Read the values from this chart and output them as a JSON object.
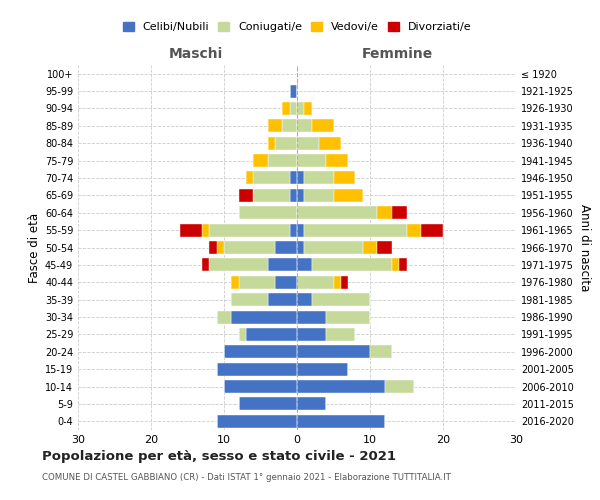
{
  "age_groups": [
    "0-4",
    "5-9",
    "10-14",
    "15-19",
    "20-24",
    "25-29",
    "30-34",
    "35-39",
    "40-44",
    "45-49",
    "50-54",
    "55-59",
    "60-64",
    "65-69",
    "70-74",
    "75-79",
    "80-84",
    "85-89",
    "90-94",
    "95-99",
    "100+"
  ],
  "birth_years": [
    "2016-2020",
    "2011-2015",
    "2006-2010",
    "2001-2005",
    "1996-2000",
    "1991-1995",
    "1986-1990",
    "1981-1985",
    "1976-1980",
    "1971-1975",
    "1966-1970",
    "1961-1965",
    "1956-1960",
    "1951-1955",
    "1946-1950",
    "1941-1945",
    "1936-1940",
    "1931-1935",
    "1926-1930",
    "1921-1925",
    "≤ 1920"
  ],
  "male": {
    "celibi": [
      11,
      8,
      10,
      11,
      10,
      7,
      9,
      4,
      3,
      4,
      3,
      1,
      0,
      1,
      1,
      0,
      0,
      0,
      0,
      1,
      0
    ],
    "coniugati": [
      0,
      0,
      0,
      0,
      0,
      1,
      2,
      5,
      5,
      8,
      7,
      11,
      8,
      5,
      5,
      4,
      3,
      2,
      1,
      0,
      0
    ],
    "vedovi": [
      0,
      0,
      0,
      0,
      0,
      0,
      0,
      0,
      1,
      0,
      1,
      1,
      0,
      0,
      1,
      2,
      1,
      2,
      1,
      0,
      0
    ],
    "divorziati": [
      0,
      0,
      0,
      0,
      0,
      0,
      0,
      0,
      0,
      1,
      1,
      3,
      0,
      2,
      0,
      0,
      0,
      0,
      0,
      0,
      0
    ]
  },
  "female": {
    "nubili": [
      12,
      4,
      12,
      7,
      10,
      4,
      4,
      2,
      0,
      2,
      1,
      1,
      0,
      1,
      1,
      0,
      0,
      0,
      0,
      0,
      0
    ],
    "coniugate": [
      0,
      0,
      4,
      0,
      3,
      4,
      6,
      8,
      5,
      11,
      8,
      14,
      11,
      4,
      4,
      4,
      3,
      2,
      1,
      0,
      0
    ],
    "vedove": [
      0,
      0,
      0,
      0,
      0,
      0,
      0,
      0,
      1,
      1,
      2,
      2,
      2,
      4,
      3,
      3,
      3,
      3,
      1,
      0,
      0
    ],
    "divorziate": [
      0,
      0,
      0,
      0,
      0,
      0,
      0,
      0,
      1,
      1,
      2,
      3,
      2,
      0,
      0,
      0,
      0,
      0,
      0,
      0,
      0
    ]
  },
  "colors": {
    "celibi": "#4472c4",
    "coniugati": "#c5d99a",
    "vedovi": "#ffc000",
    "divorziati": "#cc0000"
  },
  "title": "Popolazione per età, sesso e stato civile - 2021",
  "subtitle": "COMUNE DI CASTEL GABBIANO (CR) - Dati ISTAT 1° gennaio 2021 - Elaborazione TUTTITALIA.IT",
  "xlabel_left": "Maschi",
  "xlabel_right": "Femmine",
  "ylabel_left": "Fasce di età",
  "ylabel_right": "Anni di nascita",
  "xlim": 30,
  "legend_labels": [
    "Celibi/Nubili",
    "Coniugati/e",
    "Vedovi/e",
    "Divorziati/e"
  ],
  "background_color": "#ffffff",
  "grid_color": "#cccccc"
}
